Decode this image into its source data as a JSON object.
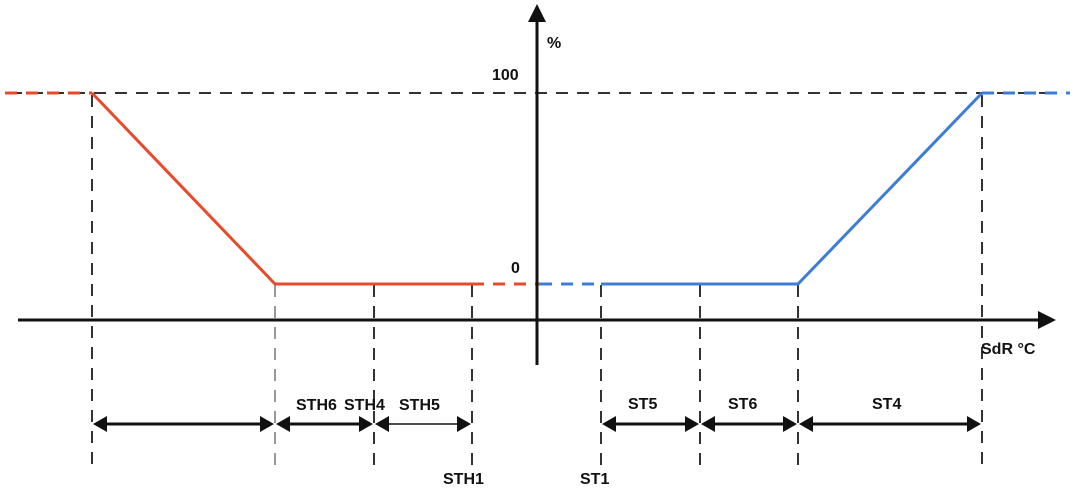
{
  "axis": {
    "y_unit": "%",
    "x_label": "SdR °C",
    "level_high": "100",
    "level_low": "0"
  },
  "thresholds": {
    "sth1": "STH1",
    "st1": "ST1"
  },
  "bands": {
    "sth6": "STH6",
    "sth4": "STH4",
    "sth5": "STH5",
    "st5": "ST5",
    "st6": "ST6",
    "st4": "ST4"
  },
  "colors": {
    "heating_curve": "#e84a2c",
    "cooling_curve": "#3d7dd8",
    "axis": "#111111"
  }
}
